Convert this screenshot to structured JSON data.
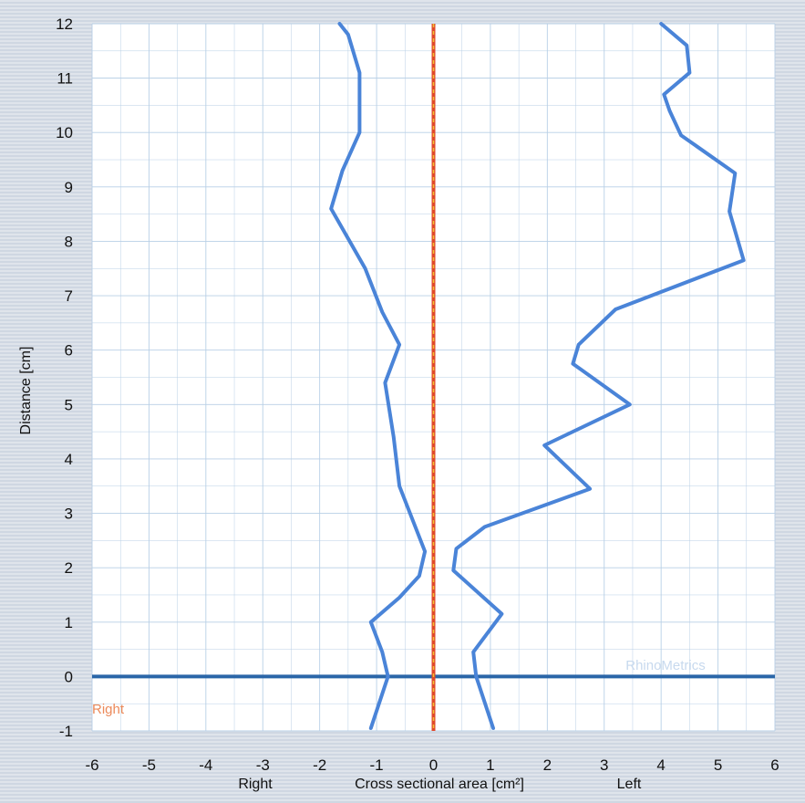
{
  "chart_data": {
    "type": "line",
    "xlabel": "Cross sectional area [cm²]",
    "xlabel_left_word": "Right",
    "xlabel_right_word": "Left",
    "ylabel": "Distance [cm]",
    "xlim": [
      -6,
      6
    ],
    "ylim": [
      -1,
      12
    ],
    "x_ticks": [
      "-6",
      "-5",
      "-4",
      "-3",
      "-2",
      "-1",
      "0",
      "1",
      "2",
      "3",
      "4",
      "5",
      "6"
    ],
    "y_ticks": [
      "-1",
      "0",
      "1",
      "2",
      "3",
      "4",
      "5",
      "6",
      "7",
      "8",
      "9",
      "10",
      "11",
      "12"
    ],
    "grid": true,
    "annotations": {
      "side_label": "Right",
      "watermark": "RhinoMetrics"
    },
    "reference_lines": {
      "baseline_y": 0,
      "center_x": 0
    },
    "series": [
      {
        "side": "right",
        "points": [
          [
            -1.1,
            -0.95
          ],
          [
            -0.8,
            0.0
          ],
          [
            -0.9,
            0.45
          ],
          [
            -1.1,
            1.0
          ],
          [
            -0.6,
            1.45
          ],
          [
            -0.25,
            1.85
          ],
          [
            -0.15,
            2.3
          ],
          [
            -0.6,
            3.5
          ],
          [
            -0.7,
            4.4
          ],
          [
            -0.85,
            5.4
          ],
          [
            -0.6,
            6.1
          ],
          [
            -0.9,
            6.7
          ],
          [
            -1.2,
            7.5
          ],
          [
            -1.8,
            8.6
          ],
          [
            -1.6,
            9.3
          ],
          [
            -1.3,
            10.0
          ],
          [
            -1.3,
            10.5
          ],
          [
            -1.3,
            11.1
          ],
          [
            -1.5,
            11.8
          ],
          [
            -1.65,
            12.0
          ]
        ]
      },
      {
        "side": "left",
        "points": [
          [
            1.05,
            -0.95
          ],
          [
            0.75,
            0.0
          ],
          [
            0.7,
            0.45
          ],
          [
            1.2,
            1.15
          ],
          [
            0.35,
            1.95
          ],
          [
            0.4,
            2.35
          ],
          [
            0.9,
            2.75
          ],
          [
            2.75,
            3.45
          ],
          [
            1.95,
            4.25
          ],
          [
            3.45,
            5.0
          ],
          [
            2.45,
            5.75
          ],
          [
            2.55,
            6.1
          ],
          [
            3.2,
            6.75
          ],
          [
            5.45,
            7.65
          ],
          [
            5.2,
            8.55
          ],
          [
            5.3,
            9.25
          ],
          [
            4.35,
            9.95
          ],
          [
            4.15,
            10.4
          ],
          [
            4.05,
            10.7
          ],
          [
            4.5,
            11.1
          ],
          [
            4.45,
            11.6
          ],
          [
            4.0,
            12.0
          ]
        ]
      }
    ],
    "colors": {
      "series": "#4a84d8",
      "baseline": "#2a66a8",
      "center_line_a": "#e0492a",
      "center_line_b": "#f2c232",
      "grid": "#b8cfe6",
      "side_label": "#ec8a5a",
      "watermark": "#c7d9ee"
    }
  }
}
